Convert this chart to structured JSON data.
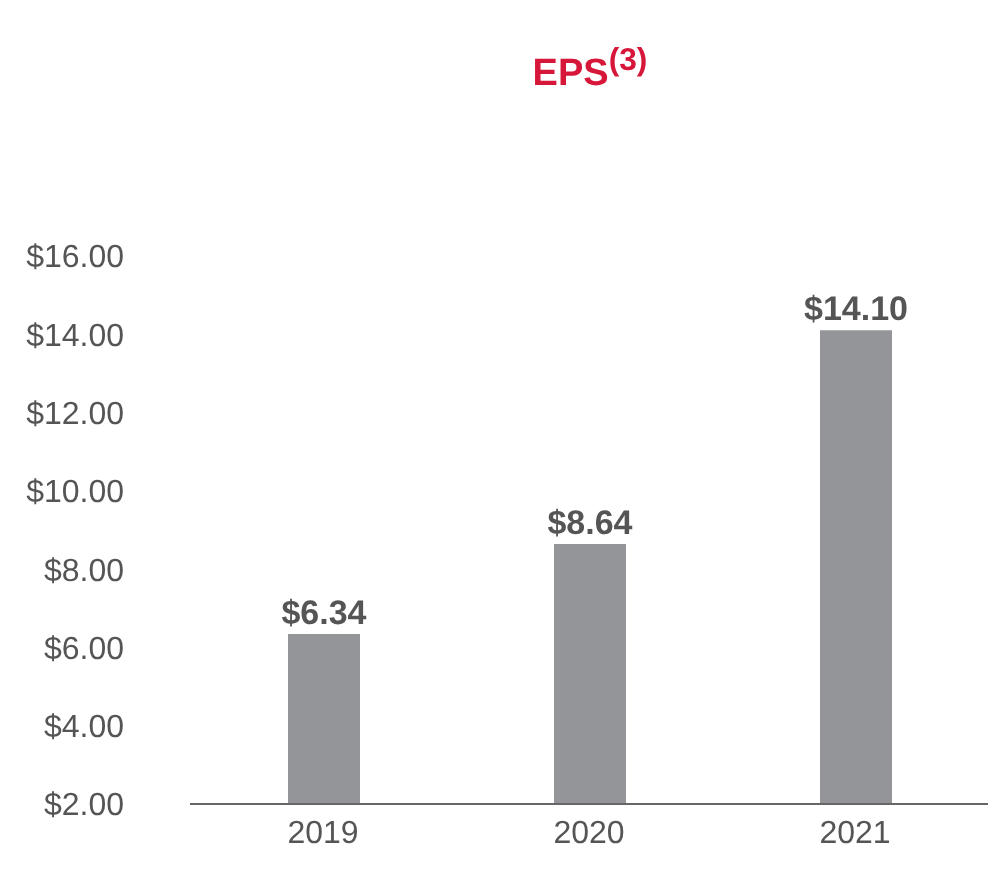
{
  "chart_data": {
    "type": "bar",
    "title": "EPS$^{(3)}$",
    "categories": [
      "2019",
      "2020",
      "2021"
    ],
    "values": [
      6.34,
      8.64,
      14.1
    ],
    "value_labels": [
      "$6.34",
      "$8.64",
      "$14.10"
    ],
    "color": "#939598",
    "ylim": [
      2,
      16
    ],
    "yticks": [
      {
        "value": 2,
        "label": "$2.00"
      },
      {
        "value": 4,
        "label": "$4.00"
      },
      {
        "value": 6,
        "label": "$6.00"
      },
      {
        "value": 8,
        "label": "$8.00"
      },
      {
        "value": 10,
        "label": "$10.00"
      },
      {
        "value": 12,
        "label": "$12.00"
      },
      {
        "value": 14,
        "label": "$14.00"
      },
      {
        "value": 16,
        "label": "$16.00"
      }
    ]
  }
}
